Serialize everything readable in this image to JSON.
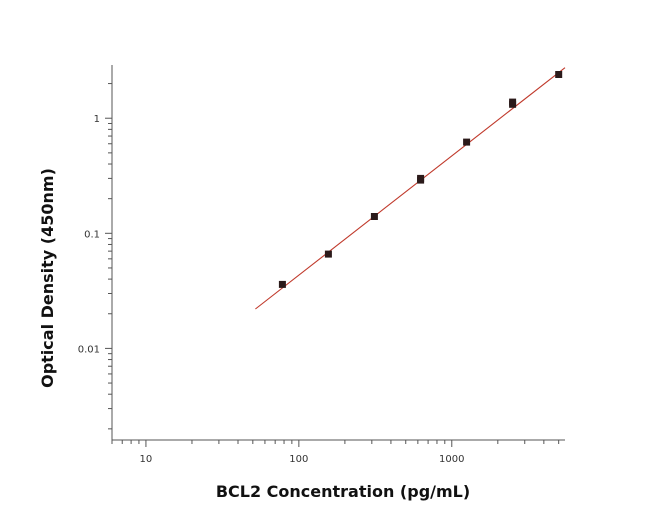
{
  "chart_data": {
    "type": "scatter",
    "title": "",
    "xlabel": "BCL2 Concentration (pg/mL)",
    "ylabel": "Optical Density (450nm)",
    "xscale": "log",
    "yscale": "log",
    "xlim": [
      6,
      5500
    ],
    "ylim": [
      0.0016,
      2.9
    ],
    "xticks": [
      {
        "value": 10,
        "label": "10"
      },
      {
        "value": 100,
        "label": "100"
      },
      {
        "value": 1000,
        "label": "1000"
      }
    ],
    "yticks": [
      {
        "value": 0.01,
        "label": "0.01"
      },
      {
        "value": 0.1,
        "label": "0.1"
      },
      {
        "value": 1,
        "label": "1"
      }
    ],
    "grid": false,
    "legend": "none",
    "series": [
      {
        "kind": "points",
        "color": "#2b1a1a",
        "x": [
          78,
          156,
          312,
          625,
          625,
          1250,
          2500,
          2500,
          5000
        ],
        "y": [
          0.036,
          0.066,
          0.14,
          0.29,
          0.3,
          0.62,
          1.32,
          1.38,
          2.4
        ]
      },
      {
        "kind": "fit-line",
        "color": "#c0392b",
        "x": [
          52,
          5500
        ],
        "y": [
          0.022,
          2.75
        ]
      }
    ]
  }
}
